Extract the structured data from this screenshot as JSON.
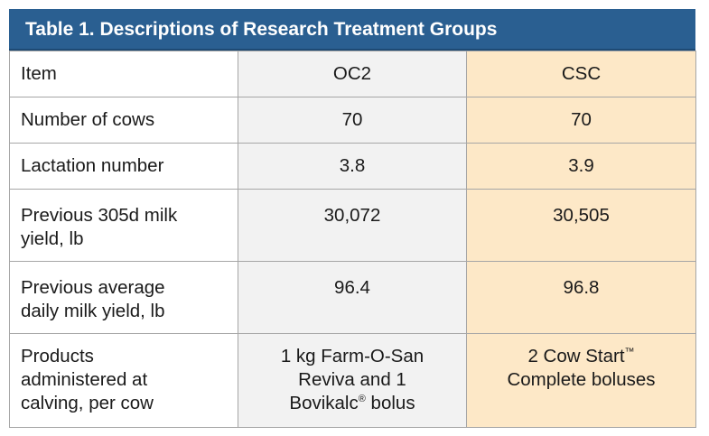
{
  "table": {
    "title": "Table 1. Descriptions of Research Treatment Groups",
    "header": {
      "item": "Item",
      "oc2": "OC2",
      "csc": "CSC"
    },
    "rows": [
      {
        "item": "Number of cows",
        "oc2": "70",
        "csc": "70"
      },
      {
        "item": "Lactation number",
        "oc2": "3.8",
        "csc": "3.9"
      },
      {
        "item_line1": "Previous 305d milk",
        "item_line2": "yield, lb",
        "oc2": "30,072",
        "csc": "30,505"
      },
      {
        "item_line1": "Previous average",
        "item_line2": "daily milk yield, lb",
        "oc2": "96.4",
        "csc": "96.8"
      },
      {
        "item_line1": "Products",
        "item_line2": "administered at",
        "item_line3": "calving, per cow",
        "oc2_line1": "1 kg Farm-O-San",
        "oc2_line2": "Reviva and 1",
        "oc2_line3_a": "Bovikalc",
        "oc2_line3_sup": "®",
        "oc2_line3_b": " bolus",
        "csc_line1_a": "2 Cow Start",
        "csc_line1_sup": "™",
        "csc_line2": "Complete boluses"
      }
    ],
    "colors": {
      "title_bg": "#2a5f91",
      "oc2_bg": "#f2f2f2",
      "csc_bg": "#fde8c7",
      "border": "#a6a6a6"
    }
  }
}
